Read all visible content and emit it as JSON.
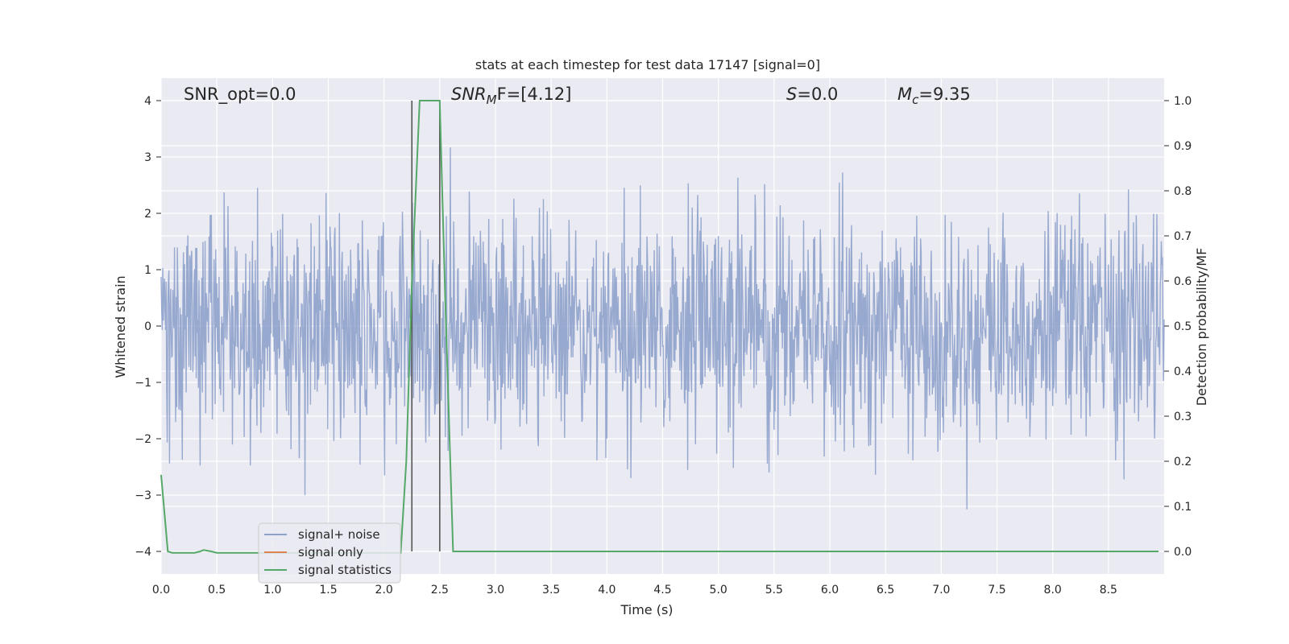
{
  "chart_data": {
    "type": "line",
    "title": "stats at each timestep for test data 17147 [signal=0]",
    "xlabel": "Time (s)",
    "ylabel_left": "Whitened strain",
    "ylabel_right": "Detection probability/MF",
    "xlim": [
      0.0,
      9.0
    ],
    "ylim_left": [
      -4.4,
      4.4
    ],
    "ylim_right": [
      -0.05,
      1.05
    ],
    "xticks": [
      "0.0",
      "0.5",
      "1.0",
      "1.5",
      "2.0",
      "2.5",
      "3.0",
      "3.5",
      "4.0",
      "4.5",
      "5.0",
      "5.5",
      "6.0",
      "6.5",
      "7.0",
      "7.5",
      "8.0",
      "8.5"
    ],
    "yticks_left": [
      "−4",
      "−3",
      "−2",
      "−1",
      "0",
      "1",
      "2",
      "3",
      "4"
    ],
    "yticks_right": [
      "0.0",
      "0.1",
      "0.2",
      "0.3",
      "0.4",
      "0.5",
      "0.6",
      "0.7",
      "0.8",
      "0.9",
      "1.0"
    ],
    "grid": true,
    "colors": {
      "signal_noise": "#8fa2cc",
      "signal_only": "#dd8452",
      "signal_statistics": "#55a868",
      "marker": "#555555",
      "background": "#eaeaf2"
    },
    "annotations": {
      "snr_opt": "SNR_opt=0.0",
      "snr_mf_sym": "SNR",
      "snr_mf_sub": "M",
      "snr_mf_rest": "F=[4.12]",
      "s_sym": "S",
      "s_rest": "=0.0",
      "mc_sym": "M",
      "mc_sub": "c",
      "mc_rest": "=9.35"
    },
    "vertical_markers_x": [
      2.25,
      2.5
    ],
    "noise_envelope": {
      "sigma": 1.0,
      "peak_max": 4.0,
      "peak_min": -4.0,
      "samples_per_second": 200,
      "x_range": [
        0.0,
        9.0
      ]
    },
    "series": [
      {
        "name": "signal+ noise",
        "axis": "left",
        "style": "filled-noise"
      },
      {
        "name": "signal only",
        "axis": "left",
        "values": []
      },
      {
        "name": "signal statistics",
        "axis": "right",
        "x": [
          0.0,
          0.06,
          0.1,
          0.15,
          0.2,
          0.3,
          0.35,
          0.38,
          0.45,
          0.5,
          0.6,
          0.8,
          1.0,
          1.5,
          2.0,
          2.15,
          2.2,
          2.25,
          2.32,
          2.45,
          2.5,
          2.55,
          2.62,
          3.0,
          4.0,
          5.0,
          6.0,
          7.0,
          8.0,
          8.95
        ],
        "y": [
          0.17,
          0.0,
          -0.003,
          -0.003,
          -0.003,
          -0.003,
          0.0,
          0.003,
          0.0,
          -0.003,
          -0.003,
          -0.003,
          -0.003,
          -0.003,
          -0.003,
          -0.003,
          0.2,
          0.6,
          1.0,
          1.0,
          1.0,
          0.55,
          0.0,
          0.0,
          0.0,
          0.0,
          0.0,
          0.0,
          0.0,
          0.0
        ]
      }
    ]
  }
}
